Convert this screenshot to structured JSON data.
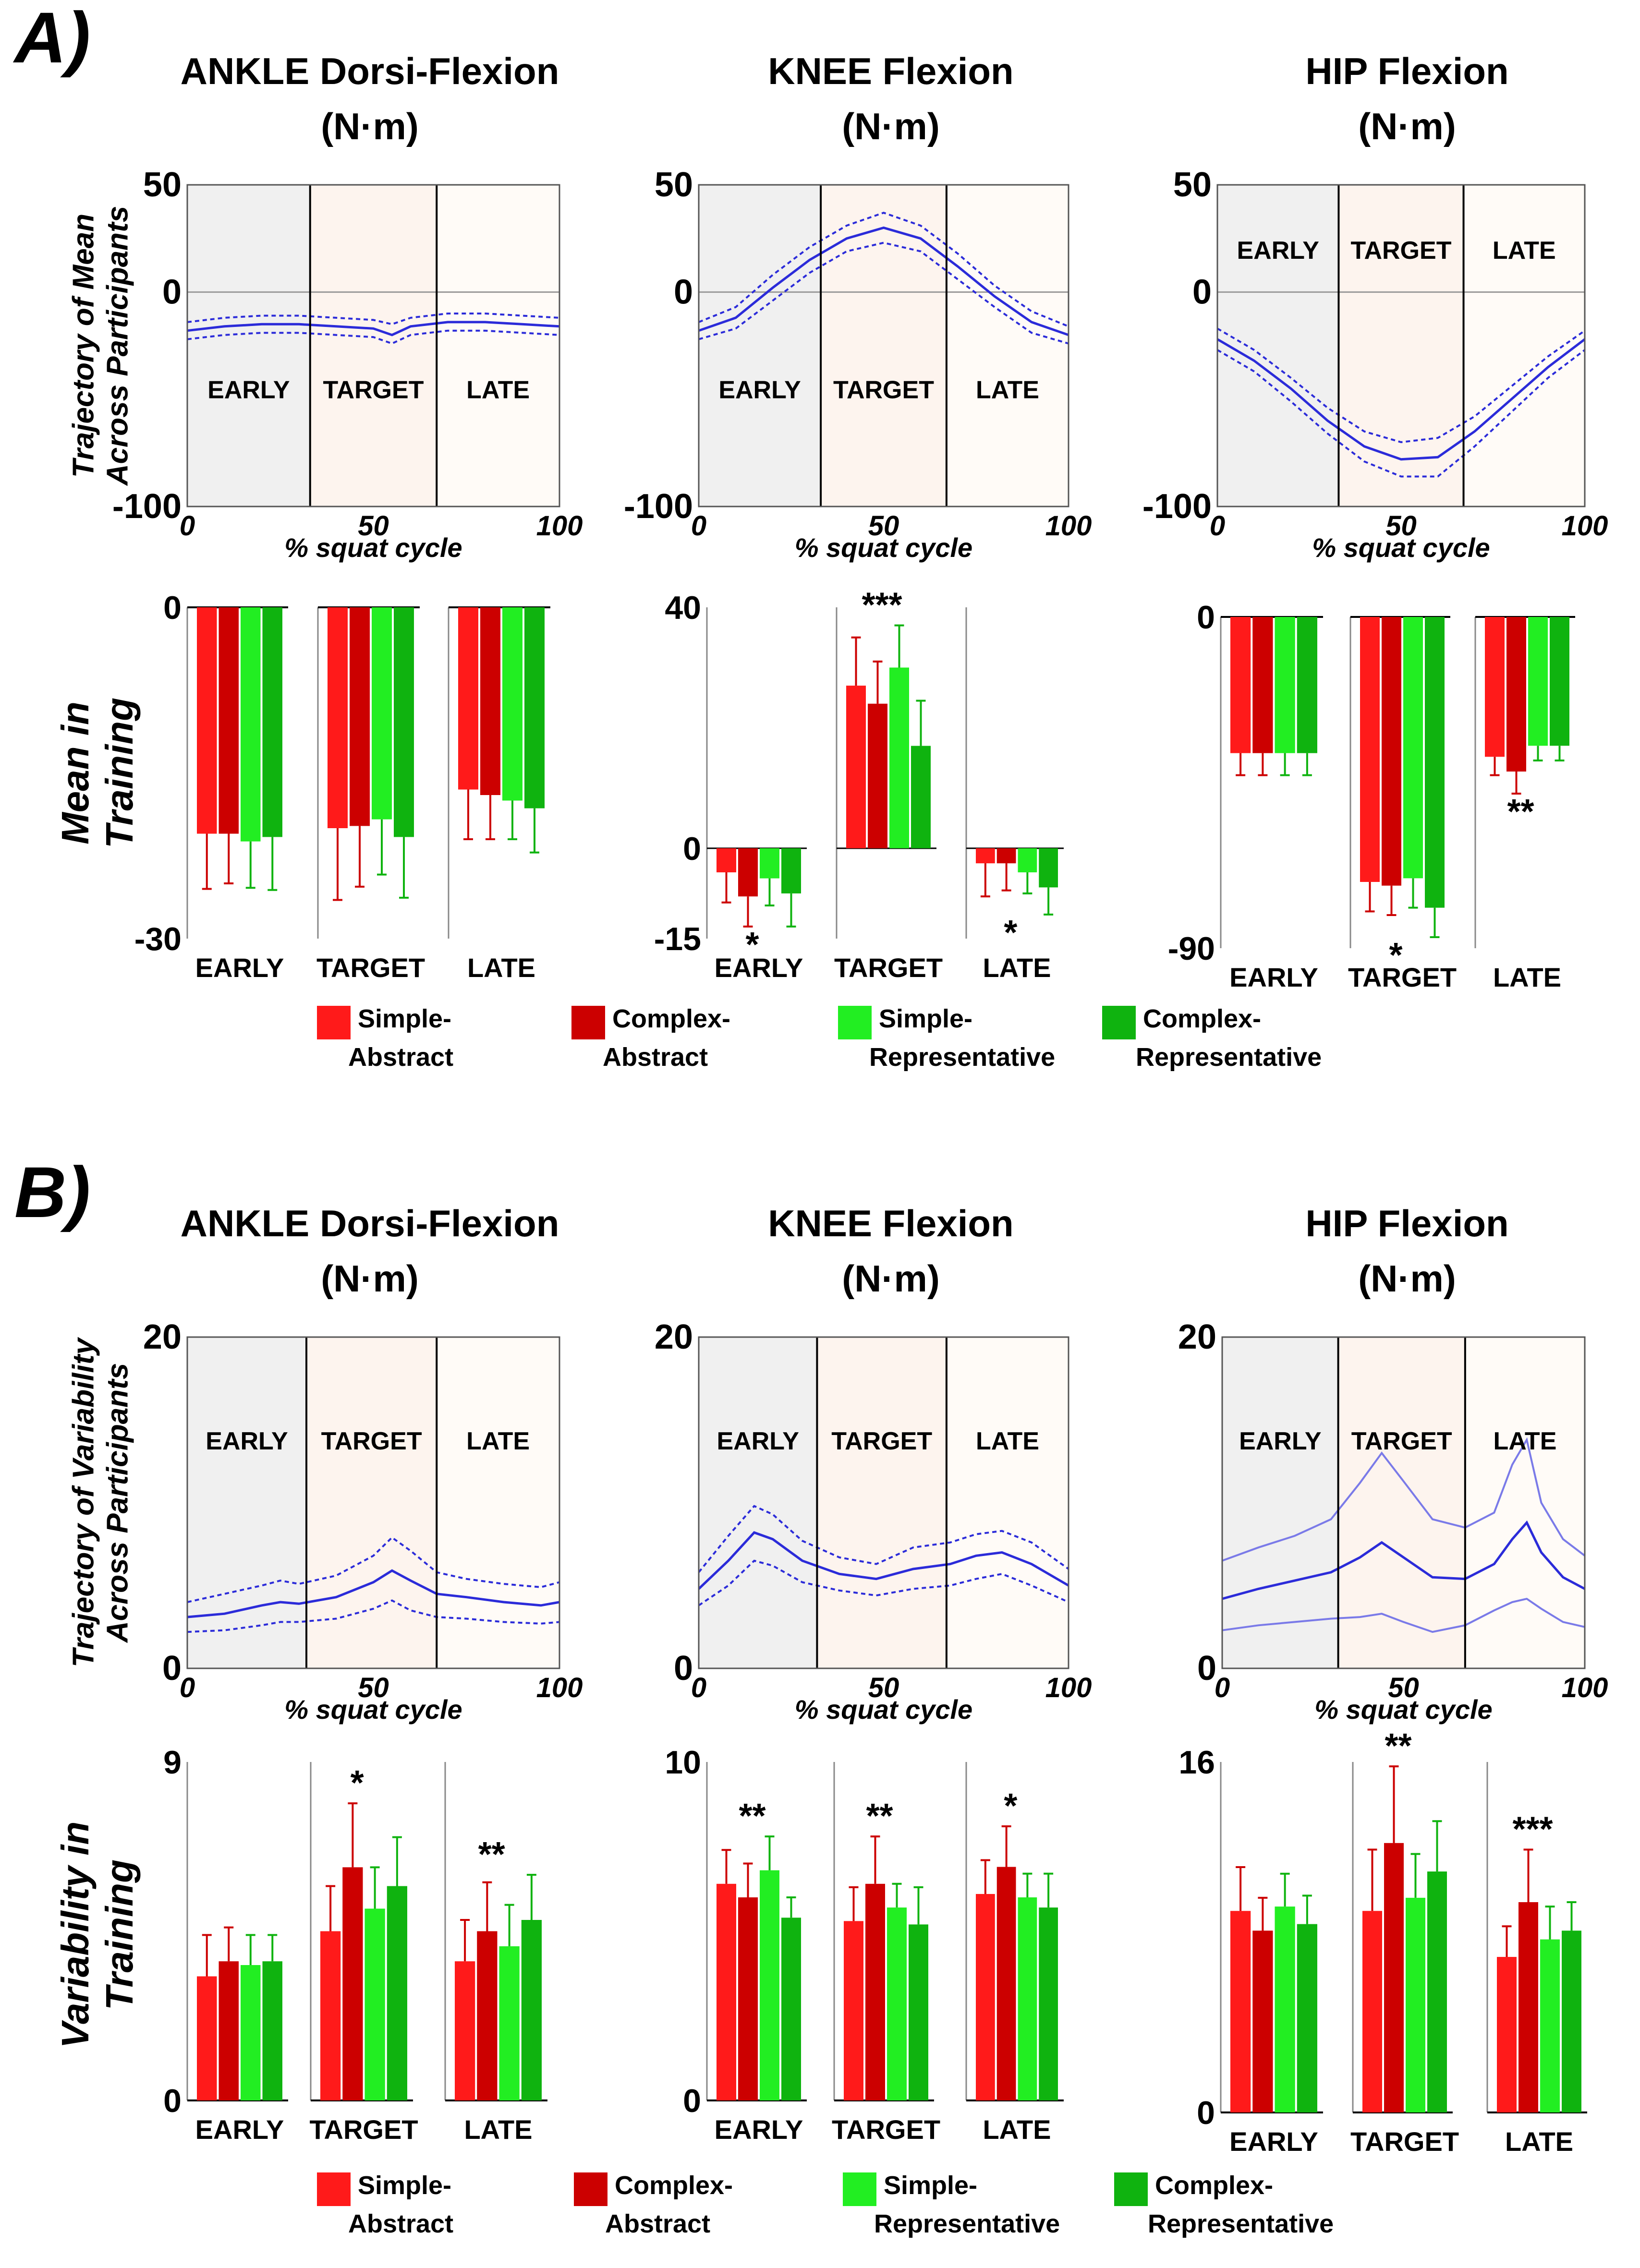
{
  "colors": {
    "line": "#2b2bd9",
    "line_light": "#7a7ae8",
    "early_bg": "#f0f0f0",
    "target_bg": "#fdf4ee",
    "late_bg": "#fffbf7",
    "simple_abstract": "#ff1a1a",
    "complex_abstract": "#cc0000",
    "simple_representative": "#22ee22",
    "complex_representative": "#0fb30f"
  },
  "panel_labels": [
    "A)",
    "B)"
  ],
  "row_labels": {
    "mean_trajectory": [
      "Trajectory of Mean",
      "Across Participants"
    ],
    "mean_training": [
      "Mean in",
      "Training"
    ],
    "var_trajectory": [
      "Trajectory of Variability",
      "Across Participants"
    ],
    "var_training": [
      "Variability in",
      "Training"
    ]
  },
  "titles": [
    [
      "ANKLE Dorsi-Flexion",
      "(N·m)"
    ],
    [
      "KNEE Flexion",
      "(N·m)"
    ],
    [
      "HIP Flexion",
      "(N·m)"
    ]
  ],
  "phases": [
    "EARLY",
    "TARGET",
    "LATE"
  ],
  "x_axis_label": "% squat cycle",
  "x_ticks": [
    "0",
    "50",
    "100"
  ],
  "legend": [
    {
      "line1": "Simple-",
      "line2": "Abstract",
      "color": "#ff1a1a"
    },
    {
      "line1": "Complex-",
      "line2": "Abstract",
      "color": "#cc0000"
    },
    {
      "line1": "Simple-",
      "line2": "Representative",
      "color": "#22ee22"
    },
    {
      "line1": "Complex-",
      "line2": "Representative",
      "color": "#0fb30f"
    }
  ],
  "chart_data": [
    {
      "type": "line",
      "id": "ankle_mean_trajectory",
      "title": "ANKLE Dorsi-Flexion (N·m)",
      "xlabel": "% squat cycle",
      "xlim": [
        0,
        100
      ],
      "ylim": [
        -100,
        50
      ],
      "y_tick_labels": [
        "50",
        "0",
        "-100"
      ],
      "phase_boundaries": [
        33,
        67
      ],
      "label_y": -45,
      "x": [
        0,
        10,
        20,
        30,
        40,
        50,
        55,
        60,
        70,
        80,
        90,
        100
      ],
      "series": [
        {
          "name": "mean",
          "values": [
            -18,
            -16,
            -15,
            -15,
            -16,
            -17,
            -20,
            -16,
            -14,
            -14,
            -15,
            -16
          ]
        },
        {
          "name": "upper",
          "values": [
            -14,
            -12,
            -11,
            -11,
            -12,
            -13,
            -15,
            -12,
            -10,
            -10,
            -11,
            -12
          ]
        },
        {
          "name": "lower",
          "values": [
            -22,
            -20,
            -19,
            -19,
            -20,
            -21,
            -24,
            -20,
            -18,
            -18,
            -19,
            -20
          ]
        }
      ]
    },
    {
      "type": "line",
      "id": "knee_mean_trajectory",
      "title": "KNEE Flexion (N·m)",
      "xlabel": "% squat cycle",
      "xlim": [
        0,
        100
      ],
      "ylim": [
        -100,
        50
      ],
      "y_tick_labels": [
        "50",
        "0",
        "-100"
      ],
      "phase_boundaries": [
        33,
        67
      ],
      "label_y": -45,
      "x": [
        0,
        10,
        20,
        30,
        40,
        50,
        60,
        70,
        80,
        90,
        100
      ],
      "series": [
        {
          "name": "mean",
          "values": [
            -18,
            -12,
            2,
            15,
            25,
            30,
            25,
            12,
            -2,
            -14,
            -20
          ]
        },
        {
          "name": "upper",
          "values": [
            -14,
            -7,
            8,
            21,
            31,
            37,
            31,
            18,
            3,
            -9,
            -16
          ]
        },
        {
          "name": "lower",
          "values": [
            -22,
            -17,
            -4,
            9,
            19,
            23,
            19,
            6,
            -7,
            -19,
            -24
          ]
        }
      ]
    },
    {
      "type": "line",
      "id": "hip_mean_trajectory",
      "title": "HIP Flexion (N·m)",
      "xlabel": "% squat cycle",
      "xlim": [
        0,
        100
      ],
      "ylim": [
        -100,
        50
      ],
      "y_tick_labels": [
        "50",
        "0",
        "-100"
      ],
      "phase_boundaries": [
        33,
        67
      ],
      "label_y": 20,
      "x": [
        0,
        10,
        20,
        30,
        40,
        50,
        60,
        70,
        80,
        90,
        100
      ],
      "series": [
        {
          "name": "mean",
          "values": [
            -22,
            -32,
            -45,
            -60,
            -72,
            -78,
            -77,
            -65,
            -50,
            -35,
            -22
          ]
        },
        {
          "name": "upper",
          "values": [
            -17,
            -27,
            -40,
            -54,
            -65,
            -70,
            -68,
            -58,
            -44,
            -30,
            -18
          ]
        },
        {
          "name": "lower",
          "values": [
            -27,
            -37,
            -51,
            -66,
            -79,
            -86,
            -86,
            -72,
            -56,
            -40,
            -27
          ]
        }
      ]
    },
    {
      "type": "bar",
      "id": "ankle_mean_training",
      "ylabel": "Mean in Training",
      "ylim": [
        -30,
        0
      ],
      "y_tick_labels": [
        "0",
        "-30"
      ],
      "categories": [
        "EARLY",
        "TARGET",
        "LATE"
      ],
      "series": [
        {
          "name": "Simple-Abstract",
          "values": [
            -20.5,
            -20.0,
            -16.5
          ],
          "errors": [
            5.0,
            6.5,
            4.5
          ]
        },
        {
          "name": "Complex-Abstract",
          "values": [
            -20.5,
            -19.8,
            -17.0
          ],
          "errors": [
            4.5,
            5.5,
            4.0
          ]
        },
        {
          "name": "Simple-Representative",
          "values": [
            -21.2,
            -19.2,
            -17.5
          ],
          "errors": [
            4.2,
            5.0,
            3.5
          ]
        },
        {
          "name": "Complex-Representative",
          "values": [
            -20.8,
            -20.8,
            -18.2
          ],
          "errors": [
            4.8,
            5.5,
            4.0
          ]
        }
      ],
      "significance": [
        "",
        "",
        ""
      ]
    },
    {
      "type": "bar",
      "id": "knee_mean_training",
      "ylabel": "Mean in Training",
      "ylim": [
        -15,
        40
      ],
      "y_tick_labels": [
        "40",
        "0",
        "-15"
      ],
      "categories": [
        "EARLY",
        "TARGET",
        "LATE"
      ],
      "series": [
        {
          "name": "Simple-Abstract",
          "values": [
            -4,
            27,
            -2.5
          ],
          "errors": [
            5,
            8,
            5.5
          ]
        },
        {
          "name": "Complex-Abstract",
          "values": [
            -8,
            24,
            -2.5
          ],
          "errors": [
            5,
            7,
            4.5
          ]
        },
        {
          "name": "Simple-Representative",
          "values": [
            -5,
            30,
            -4
          ],
          "errors": [
            4.5,
            7,
            3.5
          ]
        },
        {
          "name": "Complex-Representative",
          "values": [
            -7.5,
            17,
            -6.5
          ],
          "errors": [
            5.5,
            7.5,
            4.5
          ]
        }
      ],
      "significance": [
        "*",
        "***",
        "*"
      ]
    },
    {
      "type": "bar",
      "id": "hip_mean_training",
      "ylabel": "Mean in Training",
      "ylim": [
        -90,
        0
      ],
      "y_tick_labels": [
        "0",
        "-90"
      ],
      "categories": [
        "EARLY",
        "TARGET",
        "LATE"
      ],
      "series": [
        {
          "name": "Simple-Abstract",
          "values": [
            -37,
            -72,
            -38
          ],
          "errors": [
            6,
            8,
            5
          ]
        },
        {
          "name": "Complex-Abstract",
          "values": [
            -37,
            -73,
            -42
          ],
          "errors": [
            6,
            8,
            6
          ]
        },
        {
          "name": "Simple-Representative",
          "values": [
            -37,
            -71,
            -35
          ],
          "errors": [
            6,
            8,
            4
          ]
        },
        {
          "name": "Complex-Representative",
          "values": [
            -37,
            -79,
            -35
          ],
          "errors": [
            6,
            8,
            4
          ]
        }
      ],
      "significance": [
        "",
        "*",
        "**"
      ]
    },
    {
      "type": "line",
      "id": "ankle_var_trajectory",
      "title": "ANKLE Dorsi-Flexion (N·m)",
      "xlabel": "% squat cycle",
      "xlim": [
        0,
        100
      ],
      "ylim": [
        0,
        20
      ],
      "y_tick_labels": [
        "20",
        "0"
      ],
      "phase_boundaries": [
        32,
        67
      ],
      "label_y": 13.8,
      "x": [
        0,
        10,
        20,
        25,
        30,
        40,
        50,
        55,
        60,
        67,
        75,
        85,
        95,
        100
      ],
      "series": [
        {
          "name": "mean",
          "values": [
            3.1,
            3.3,
            3.8,
            4.0,
            3.9,
            4.3,
            5.2,
            5.9,
            5.3,
            4.5,
            4.3,
            4.0,
            3.8,
            4.0
          ]
        },
        {
          "name": "upper",
          "values": [
            4.0,
            4.5,
            5.0,
            5.3,
            5.1,
            5.6,
            6.8,
            7.9,
            7.1,
            5.8,
            5.4,
            5.1,
            4.9,
            5.2
          ]
        },
        {
          "name": "lower",
          "values": [
            2.2,
            2.3,
            2.6,
            2.8,
            2.8,
            3.0,
            3.6,
            4.1,
            3.5,
            3.1,
            3.0,
            2.8,
            2.7,
            2.8
          ]
        }
      ]
    },
    {
      "type": "line",
      "id": "knee_var_trajectory",
      "title": "KNEE Flexion (N·m)",
      "xlabel": "% squat cycle",
      "xlim": [
        0,
        100
      ],
      "ylim": [
        0,
        20
      ],
      "y_tick_labels": [
        "20",
        "0"
      ],
      "phase_boundaries": [
        32,
        67
      ],
      "label_y": 13.8,
      "x": [
        0,
        8,
        15,
        20,
        28,
        38,
        48,
        58,
        68,
        75,
        82,
        90,
        100
      ],
      "series": [
        {
          "name": "mean",
          "values": [
            4.8,
            6.5,
            8.2,
            7.8,
            6.5,
            5.7,
            5.4,
            6.0,
            6.3,
            6.8,
            7.0,
            6.3,
            5.0
          ]
        },
        {
          "name": "upper",
          "values": [
            5.8,
            8.0,
            9.8,
            9.3,
            7.7,
            6.7,
            6.3,
            7.3,
            7.6,
            8.1,
            8.3,
            7.6,
            6.0
          ]
        },
        {
          "name": "lower",
          "values": [
            3.8,
            5.0,
            6.5,
            6.2,
            5.2,
            4.7,
            4.4,
            4.8,
            5.0,
            5.4,
            5.7,
            5.0,
            4.0
          ]
        }
      ]
    },
    {
      "type": "line",
      "id": "hip_var_trajectory",
      "title": "HIP Flexion (N·m)",
      "xlabel": "% squat cycle",
      "xlim": [
        0,
        100
      ],
      "ylim": [
        0,
        20
      ],
      "y_tick_labels": [
        "20",
        "0"
      ],
      "phase_boundaries": [
        32,
        67
      ],
      "label_y": 13.8,
      "x": [
        0,
        10,
        20,
        30,
        38,
        44,
        50,
        58,
        67,
        75,
        80,
        84,
        88,
        94,
        100
      ],
      "series": [
        {
          "name": "mean",
          "values": [
            4.2,
            4.8,
            5.3,
            5.8,
            6.7,
            7.6,
            6.7,
            5.5,
            5.4,
            6.3,
            7.8,
            8.8,
            7.0,
            5.5,
            4.8
          ]
        },
        {
          "name": "upper",
          "values": [
            6.5,
            7.3,
            8.0,
            9.0,
            11.2,
            13.0,
            11.3,
            9.0,
            8.5,
            9.4,
            12.3,
            13.8,
            10.0,
            7.8,
            6.8
          ]
        },
        {
          "name": "lower",
          "values": [
            2.3,
            2.6,
            2.8,
            3.0,
            3.1,
            3.3,
            2.8,
            2.2,
            2.6,
            3.5,
            4.0,
            4.2,
            3.6,
            2.8,
            2.5
          ]
        }
      ]
    },
    {
      "type": "bar",
      "id": "ankle_var_training",
      "ylabel": "Variability in Training",
      "ylim": [
        0,
        9
      ],
      "y_tick_labels": [
        "9",
        "0"
      ],
      "categories": [
        "EARLY",
        "TARGET",
        "LATE"
      ],
      "series": [
        {
          "name": "Simple-Abstract",
          "values": [
            3.3,
            4.5,
            3.7
          ],
          "errors": [
            1.1,
            1.2,
            1.1
          ]
        },
        {
          "name": "Complex-Abstract",
          "values": [
            3.7,
            6.2,
            4.5
          ],
          "errors": [
            0.9,
            1.7,
            1.3
          ]
        },
        {
          "name": "Simple-Representative",
          "values": [
            3.6,
            5.1,
            4.1
          ],
          "errors": [
            0.8,
            1.1,
            1.1
          ]
        },
        {
          "name": "Complex-Representative",
          "values": [
            3.7,
            5.7,
            4.8
          ],
          "errors": [
            0.7,
            1.3,
            1.2
          ]
        }
      ],
      "significance": [
        "",
        "*",
        "**"
      ]
    },
    {
      "type": "bar",
      "id": "knee_var_training",
      "ylabel": "Variability in Training",
      "ylim": [
        0,
        10
      ],
      "y_tick_labels": [
        "10",
        "0"
      ],
      "categories": [
        "EARLY",
        "TARGET",
        "LATE"
      ],
      "series": [
        {
          "name": "Simple-Abstract",
          "values": [
            6.4,
            5.3,
            6.1
          ],
          "errors": [
            1.0,
            1.0,
            1.0
          ]
        },
        {
          "name": "Complex-Abstract",
          "values": [
            6.0,
            6.4,
            6.9
          ],
          "errors": [
            1.0,
            1.4,
            1.2
          ]
        },
        {
          "name": "Simple-Representative",
          "values": [
            6.8,
            5.7,
            6.0
          ],
          "errors": [
            1.0,
            0.7,
            0.7
          ]
        },
        {
          "name": "Complex-Representative",
          "values": [
            5.4,
            5.2,
            5.7
          ],
          "errors": [
            0.6,
            1.1,
            1.0
          ]
        }
      ],
      "significance": [
        "**",
        "**",
        "*"
      ]
    },
    {
      "type": "bar",
      "id": "hip_var_training",
      "ylabel": "Variability in Training",
      "ylim": [
        0,
        16
      ],
      "y_tick_labels": [
        "16",
        "0"
      ],
      "categories": [
        "EARLY",
        "TARGET",
        "LATE"
      ],
      "series": [
        {
          "name": "Simple-Abstract",
          "values": [
            9.2,
            9.2,
            7.1
          ],
          "errors": [
            2.0,
            2.8,
            1.4
          ]
        },
        {
          "name": "Complex-Abstract",
          "values": [
            8.3,
            12.3,
            9.6
          ],
          "errors": [
            1.5,
            3.5,
            2.4
          ]
        },
        {
          "name": "Simple-Representative",
          "values": [
            9.4,
            9.8,
            7.9
          ],
          "errors": [
            1.5,
            2.0,
            1.5
          ]
        },
        {
          "name": "Complex-Representative",
          "values": [
            8.6,
            11.0,
            8.3
          ],
          "errors": [
            1.3,
            2.3,
            1.3
          ]
        }
      ],
      "significance": [
        "",
        "**",
        "***"
      ]
    }
  ]
}
